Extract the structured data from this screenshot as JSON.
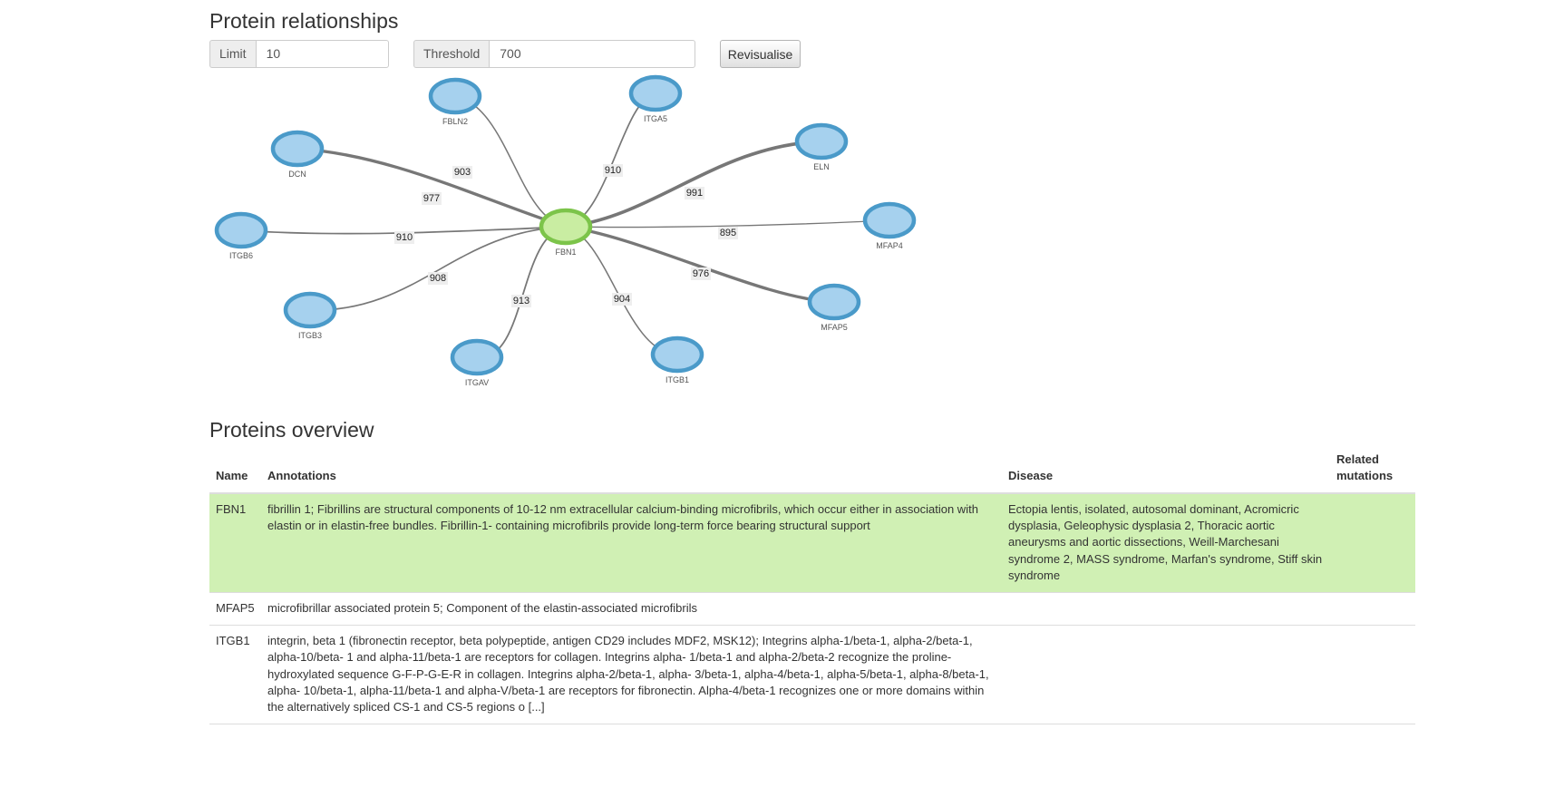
{
  "relationships": {
    "title": "Protein relationships",
    "limit_label": "Limit",
    "limit_value": "10",
    "threshold_label": "Threshold",
    "threshold_value": "700",
    "revisualise_label": "Revisualise"
  },
  "graph": {
    "center": {
      "label": "FBN1",
      "color": "#7cc44a",
      "fill": "#c9eda2"
    },
    "node_color": "#4a9ac9",
    "node_fill": "#a6d1ee",
    "nodes": [
      {
        "label": "FBLN2",
        "score": "903"
      },
      {
        "label": "ITGA5",
        "score": "910"
      },
      {
        "label": "DCN",
        "score": "977"
      },
      {
        "label": "ELN",
        "score": "991"
      },
      {
        "label": "ITGB6",
        "score": "910"
      },
      {
        "label": "MFAP4",
        "score": "895"
      },
      {
        "label": "ITGB3",
        "score": "908"
      },
      {
        "label": "MFAP5",
        "score": "976"
      },
      {
        "label": "ITGAV",
        "score": "913"
      },
      {
        "label": "ITGB1",
        "score": "904"
      }
    ]
  },
  "overview": {
    "title": "Proteins overview",
    "headers": {
      "name": "Name",
      "annotations": "Annotations",
      "disease": "Disease",
      "mutations": "Related mutations"
    },
    "highlight_color": "#d0f0b4",
    "rows": [
      {
        "name": "FBN1",
        "annotations": "fibrillin 1; Fibrillins are structural components of 10-12 nm extracellular calcium-binding microfibrils, which occur either in association with elastin or in elastin-free bundles. Fibrillin-1- containing microfibrils provide long-term force bearing structural support",
        "disease": "Ectopia lentis, isolated, autosomal dominant, Acromicric dysplasia, Geleophysic dysplasia 2, Thoracic aortic aneurysms and aortic dissections, Weill-Marchesani syndrome 2, MASS syndrome, Marfan's syndrome, Stiff skin syndrome",
        "mutations": ""
      },
      {
        "name": "MFAP5",
        "annotations": "microfibrillar associated protein 5; Component of the elastin-associated microfibrils",
        "disease": "",
        "mutations": ""
      },
      {
        "name": "ITGB1",
        "annotations": "integrin, beta 1 (fibronectin receptor, beta polypeptide, antigen CD29 includes MDF2, MSK12); Integrins alpha-1/beta-1, alpha-2/beta-1, alpha-10/beta- 1 and alpha-11/beta-1 are receptors for collagen. Integrins alpha- 1/beta-1 and alpha-2/beta-2 recognize the proline-hydroxylated sequence G-F-P-G-E-R in collagen. Integrins alpha-2/beta-1, alpha- 3/beta-1, alpha-4/beta-1, alpha-5/beta-1, alpha-8/beta-1, alpha- 10/beta-1, alpha-11/beta-1 and alpha-V/beta-1 are receptors for fibronectin. Alpha-4/beta-1 recognizes one or more domains within the alternatively spliced CS-1 and CS-5 regions o [...]",
        "disease": "",
        "mutations": ""
      }
    ]
  }
}
